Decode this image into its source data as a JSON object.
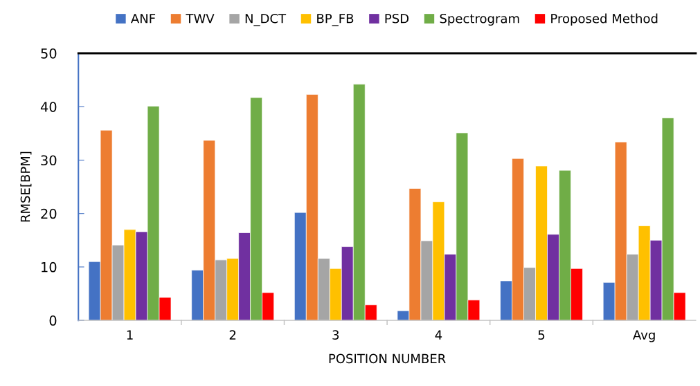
{
  "chart_data": {
    "type": "bar",
    "xlabel": "POSITION NUMBER",
    "ylabel": "RMSE[BPM]",
    "categories": [
      "1",
      "2",
      "3",
      "4",
      "5",
      "Avg"
    ],
    "series": [
      {
        "name": "ANF",
        "color": "#4472c4",
        "values": [
          11,
          9.4,
          20.2,
          1.8,
          7.4,
          7.1
        ]
      },
      {
        "name": "TWV",
        "color": "#ed7d31",
        "values": [
          35.6,
          33.7,
          42.3,
          24.7,
          30.3,
          33.4
        ]
      },
      {
        "name": "N_DCT",
        "color": "#a5a5a5",
        "values": [
          14.1,
          11.3,
          11.6,
          14.9,
          9.9,
          12.4
        ]
      },
      {
        "name": "BP_FB",
        "color": "#ffc000",
        "values": [
          17,
          11.6,
          9.7,
          22.2,
          28.9,
          17.7
        ]
      },
      {
        "name": "PSD",
        "color": "#7030a0",
        "values": [
          16.6,
          16.4,
          13.8,
          12.4,
          16.1,
          15
        ]
      },
      {
        "name": "Spectrogram",
        "color": "#70ad47",
        "values": [
          40.1,
          41.7,
          44.2,
          35.1,
          28.1,
          37.9
        ]
      },
      {
        "name": "Proposed Method",
        "color": "#ff0000",
        "values": [
          4.3,
          5.2,
          2.9,
          3.8,
          9.7,
          5.2
        ]
      }
    ],
    "ylim": [
      0,
      50
    ],
    "yticks": [
      0,
      10,
      20,
      30,
      40,
      50
    ],
    "grid": false,
    "legend": "top"
  }
}
